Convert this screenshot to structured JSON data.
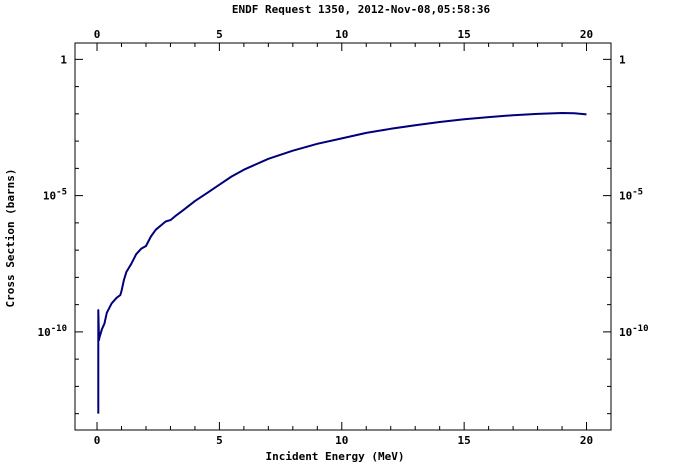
{
  "chart_data": {
    "type": "line",
    "title": "ENDF Request 1350, 2012-Nov-08,05:58:36",
    "xlabel": "Incident Energy (MeV)",
    "ylabel": "Cross Section (barns)",
    "xlim": [
      -0.9,
      21
    ],
    "ylim_log10": [
      -13.6,
      0.6
    ],
    "y_scale": "log",
    "grid": false,
    "legend": "none",
    "x_ticks": [
      0,
      5,
      10,
      15,
      20
    ],
    "x_tick_labels": [
      "0",
      "5",
      "10",
      "15",
      "20"
    ],
    "y_tick_labels": [
      {
        "log": 0,
        "base": "1",
        "exp": ""
      },
      {
        "log": -5,
        "base": "10",
        "exp": "-5"
      },
      {
        "log": -10,
        "base": "10",
        "exp": "-10"
      }
    ],
    "line_color": "#00007a",
    "series": [
      {
        "x": [
          0.05,
          0.05,
          0.08,
          0.1,
          0.15,
          0.2,
          0.3,
          0.4,
          0.6,
          0.8,
          0.95,
          1.0,
          1.1,
          1.2,
          1.4,
          1.6,
          1.8,
          2.0,
          2.2,
          2.4,
          2.6,
          2.8,
          3.0,
          3.2,
          3.5,
          4.0,
          4.5,
          5.0,
          5.5,
          6.0,
          7.0,
          8.0,
          9.0,
          10.0,
          11.0,
          12.0,
          13.0,
          14.0,
          15.0,
          16.0,
          17.0,
          18.0,
          19.0,
          19.5,
          20.0
        ],
        "log10_y": [
          -13.0,
          -9.2,
          -10.3,
          -10.2,
          -10.05,
          -9.9,
          -9.7,
          -9.3,
          -8.95,
          -8.75,
          -8.65,
          -8.5,
          -8.1,
          -7.8,
          -7.5,
          -7.15,
          -6.95,
          -6.85,
          -6.5,
          -6.25,
          -6.1,
          -5.95,
          -5.9,
          -5.75,
          -5.55,
          -5.2,
          -4.9,
          -4.6,
          -4.3,
          -4.05,
          -3.65,
          -3.35,
          -3.1,
          -2.9,
          -2.7,
          -2.55,
          -2.42,
          -2.3,
          -2.2,
          -2.12,
          -2.05,
          -2.0,
          -1.97,
          -1.98,
          -2.02
        ]
      }
    ]
  }
}
